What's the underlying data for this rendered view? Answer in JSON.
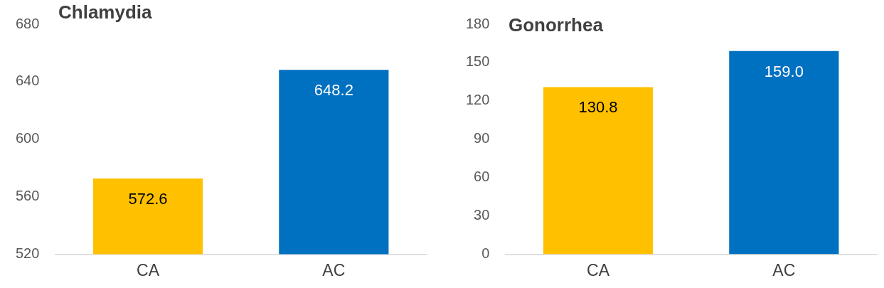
{
  "chart_data": [
    {
      "type": "bar",
      "title": "Chlamydia",
      "categories": [
        "CA",
        "AC"
      ],
      "values": [
        572.6,
        648.2
      ],
      "colors": [
        "#ffc000",
        "#0070c0"
      ],
      "ylim": [
        520,
        680
      ],
      "yticks": [
        520,
        560,
        600,
        640,
        680
      ],
      "value_labels": [
        "572.6",
        "648.2"
      ],
      "grid": false,
      "legend": false
    },
    {
      "type": "bar",
      "title": "Gonorrhea",
      "categories": [
        "CA",
        "AC"
      ],
      "values": [
        130.8,
        159.0
      ],
      "colors": [
        "#ffc000",
        "#0070c0"
      ],
      "ylim": [
        0,
        180
      ],
      "yticks": [
        0,
        30,
        60,
        90,
        120,
        150,
        180
      ],
      "value_labels": [
        "130.8",
        "159.0"
      ],
      "grid": false,
      "legend": false
    }
  ]
}
